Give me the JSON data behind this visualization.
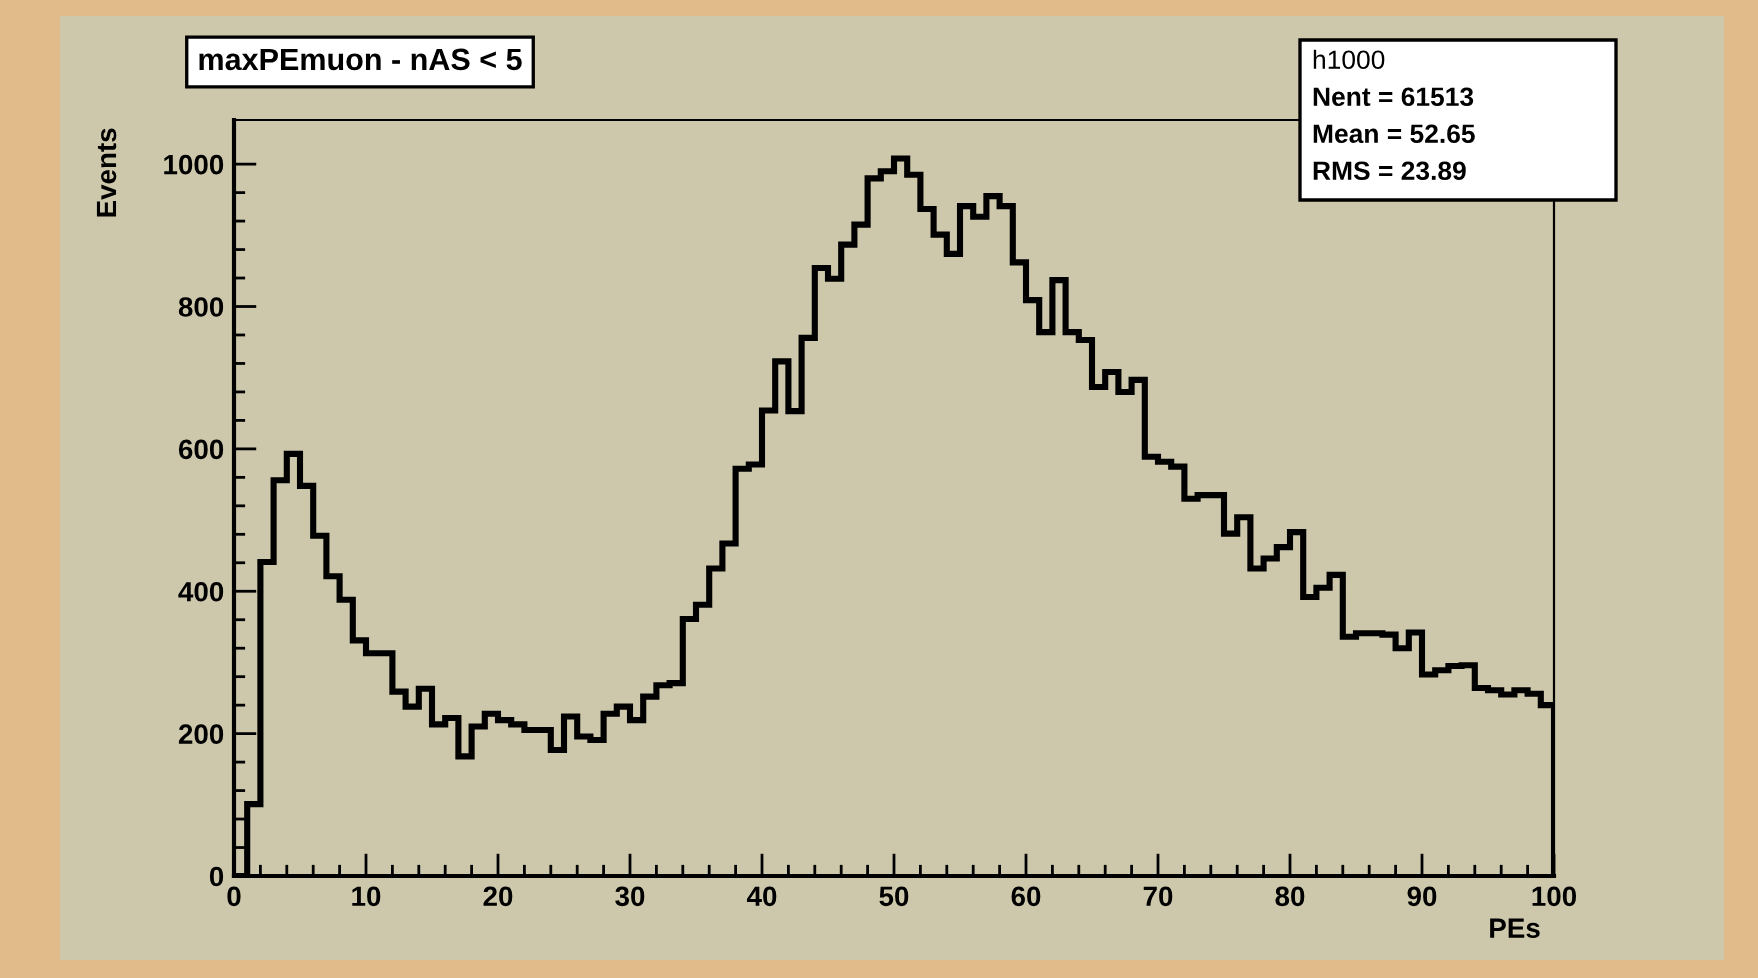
{
  "chart_data": {
    "type": "histogram",
    "title": "maxPEmuon - nAS < 5",
    "xlabel": "PEs",
    "ylabel": "Events",
    "bins": [
      0,
      1,
      2,
      3,
      4,
      5,
      6,
      7,
      8,
      9,
      10,
      11,
      12,
      13,
      14,
      15,
      16,
      17,
      18,
      19,
      20,
      21,
      22,
      23,
      24,
      25,
      26,
      27,
      28,
      29,
      30,
      31,
      32,
      33,
      34,
      35,
      36,
      37,
      38,
      39,
      40,
      41,
      42,
      43,
      44,
      45,
      46,
      47,
      48,
      49,
      50,
      51,
      52,
      53,
      54,
      55,
      56,
      57,
      58,
      59,
      60,
      61,
      62,
      63,
      64,
      65,
      66,
      67,
      68,
      69,
      70,
      71,
      72,
      73,
      74,
      75,
      76,
      77,
      78,
      79,
      80,
      81,
      82,
      83,
      84,
      85,
      86,
      87,
      88,
      89,
      90,
      91,
      92,
      93,
      94,
      95,
      96,
      97,
      98,
      99,
      100
    ],
    "values": [
      0,
      101,
      441,
      556,
      593,
      548,
      478,
      421,
      388,
      331,
      313,
      313,
      259,
      238,
      263,
      213,
      222,
      168,
      210,
      228,
      219,
      213,
      205,
      205,
      177,
      224,
      196,
      191,
      228,
      238,
      219,
      252,
      268,
      271,
      361,
      381,
      432,
      467,
      572,
      578,
      654,
      723,
      653,
      756,
      854,
      839,
      887,
      915,
      980,
      990,
      1008,
      985,
      937,
      901,
      874,
      941,
      926,
      955,
      941,
      862,
      809,
      764,
      837,
      764,
      753,
      687,
      708,
      680,
      697,
      589,
      582,
      575,
      530,
      535,
      535,
      481,
      504,
      432,
      446,
      462,
      483,
      392,
      405,
      423,
      336,
      341,
      341,
      339,
      320,
      342,
      283,
      289,
      295,
      296,
      264,
      261,
      255,
      261,
      256,
      240
    ],
    "color": "#000000",
    "xlim": [
      0,
      100
    ],
    "xticks": [
      0,
      10,
      20,
      30,
      40,
      50,
      60,
      70,
      80,
      90,
      100
    ],
    "ylim": [
      0,
      1062
    ],
    "yticks": [
      0,
      200,
      400,
      600,
      800,
      1000
    ],
    "grid": false,
    "annotations": [
      "h1000",
      "Nent = 61513",
      "Mean = 52.65",
      "RMS = 23.89"
    ]
  }
}
